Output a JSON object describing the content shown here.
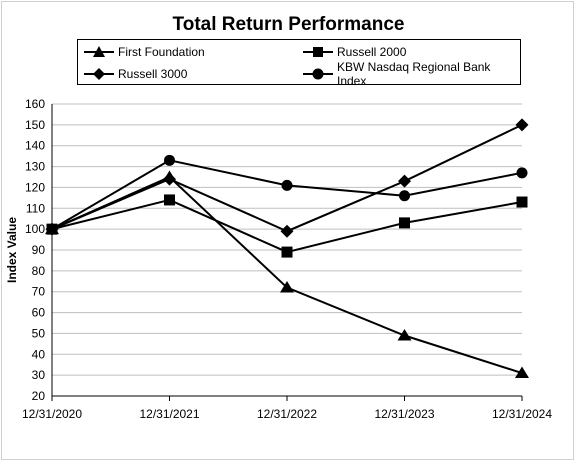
{
  "chart_data": {
    "type": "line",
    "title": "Total Return Performance",
    "xlabel": "",
    "ylabel": "Index Value",
    "categories": [
      "12/31/2020",
      "12/31/2021",
      "12/31/2022",
      "12/31/2023",
      "12/31/2024"
    ],
    "ylim": [
      20,
      160
    ],
    "ytick_step": 10,
    "grid": "horizontal",
    "legend_position": "top",
    "series": [
      {
        "name": "First Foundation",
        "marker": "triangle",
        "color": "#000000",
        "values": [
          100,
          125,
          72,
          49,
          31
        ]
      },
      {
        "name": "Russell 2000",
        "marker": "square",
        "color": "#000000",
        "values": [
          100,
          114,
          89,
          103,
          113
        ]
      },
      {
        "name": "Russell 3000",
        "marker": "diamond",
        "color": "#000000",
        "values": [
          100,
          124,
          99,
          123,
          150
        ]
      },
      {
        "name": "KBW Nasdaq Regional Bank Index",
        "marker": "circle",
        "color": "#000000",
        "values": [
          100,
          133,
          121,
          116,
          127
        ]
      }
    ]
  }
}
